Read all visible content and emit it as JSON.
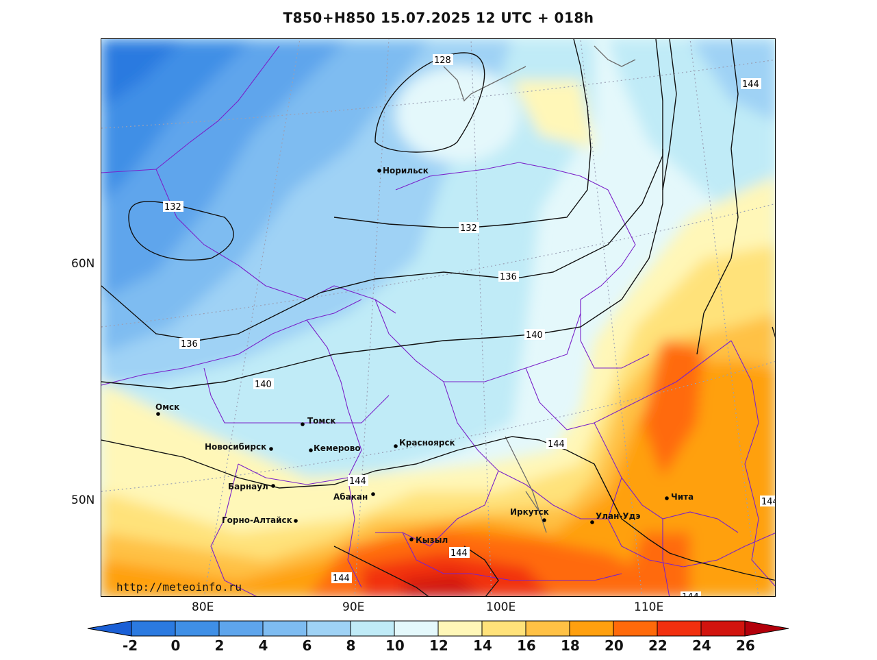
{
  "title": "T850+H850 15.07.2025 12 UTC + 018h",
  "url": "http://meteoinfo.ru",
  "lat_labels": [
    "60N",
    "50N"
  ],
  "lon_labels": [
    "80E",
    "90E",
    "100E",
    "110E"
  ],
  "cities": [
    {
      "name": "Норильск"
    },
    {
      "name": "Омск"
    },
    {
      "name": "Томск"
    },
    {
      "name": "Новосибирск"
    },
    {
      "name": "Кемерово"
    },
    {
      "name": "Красноярск"
    },
    {
      "name": "Барнаул"
    },
    {
      "name": "Абакан"
    },
    {
      "name": "Горно-Алтайск"
    },
    {
      "name": "Кызыл"
    },
    {
      "name": "Иркутск"
    },
    {
      "name": "Улан-Удэ"
    },
    {
      "name": "Чита"
    }
  ],
  "contour_labels": [
    "128",
    "132",
    "132",
    "136",
    "136",
    "140",
    "140",
    "144",
    "144",
    "144",
    "144",
    "144",
    "144",
    "144"
  ],
  "colorbar": {
    "ticks": [
      "-2",
      "0",
      "2",
      "4",
      "6",
      "8",
      "10",
      "12",
      "14",
      "16",
      "18",
      "20",
      "22",
      "24",
      "26"
    ],
    "colors": [
      "#1a5fd6",
      "#2b7ae0",
      "#3f8fe6",
      "#5ea5ec",
      "#7ebcf1",
      "#9fd2f5",
      "#c0ebf7",
      "#e4f8fb",
      "#fff7b8",
      "#ffe27a",
      "#ffc145",
      "#ffa00f",
      "#ff6a0a",
      "#f2300f",
      "#d2140e",
      "#b3000b"
    ]
  }
}
